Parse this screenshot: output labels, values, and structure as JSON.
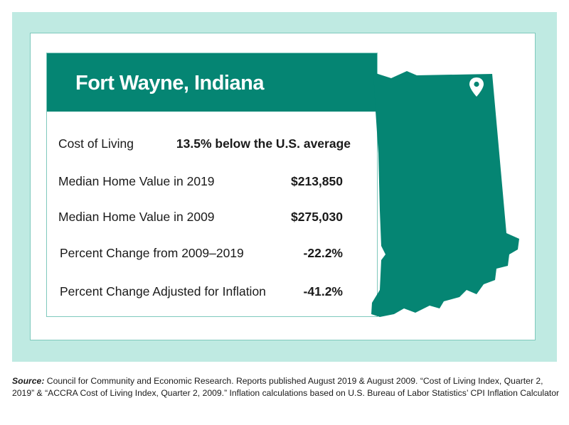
{
  "title": "Fort Wayne, Indiana",
  "stats": [
    {
      "label": "Cost of Living",
      "value": "13.5% below the U.S. average"
    },
    {
      "label": "Median Home Value in 2019",
      "value": "$213,850"
    },
    {
      "label": "Median Home Value in 2009",
      "value": "$275,030"
    },
    {
      "label": "Percent Change from 2009–2019",
      "value": "-22.2%"
    },
    {
      "label": "Percent Change Adjusted for Inflation",
      "value": "-41.2%"
    }
  ],
  "map": {
    "state_icon": "indiana-state-shape-icon",
    "marker_icon": "location-pin-icon",
    "fill_color": "#058573"
  },
  "source": {
    "label": "Source:",
    "text": " Council for Community and Economic Research. Reports published August 2019 & August 2009. “Cost of Living Index, Quarter 2, 2019” & “ACCRA Cost of Living Index, Quarter 2, 2009.” Inflation calculations based on U.S. Bureau of Labor Statistics’ CPI Inflation Calculator"
  },
  "colors": {
    "brand_green": "#058573",
    "mint_background": "#bfeae2",
    "border": "#7fc9bd"
  }
}
